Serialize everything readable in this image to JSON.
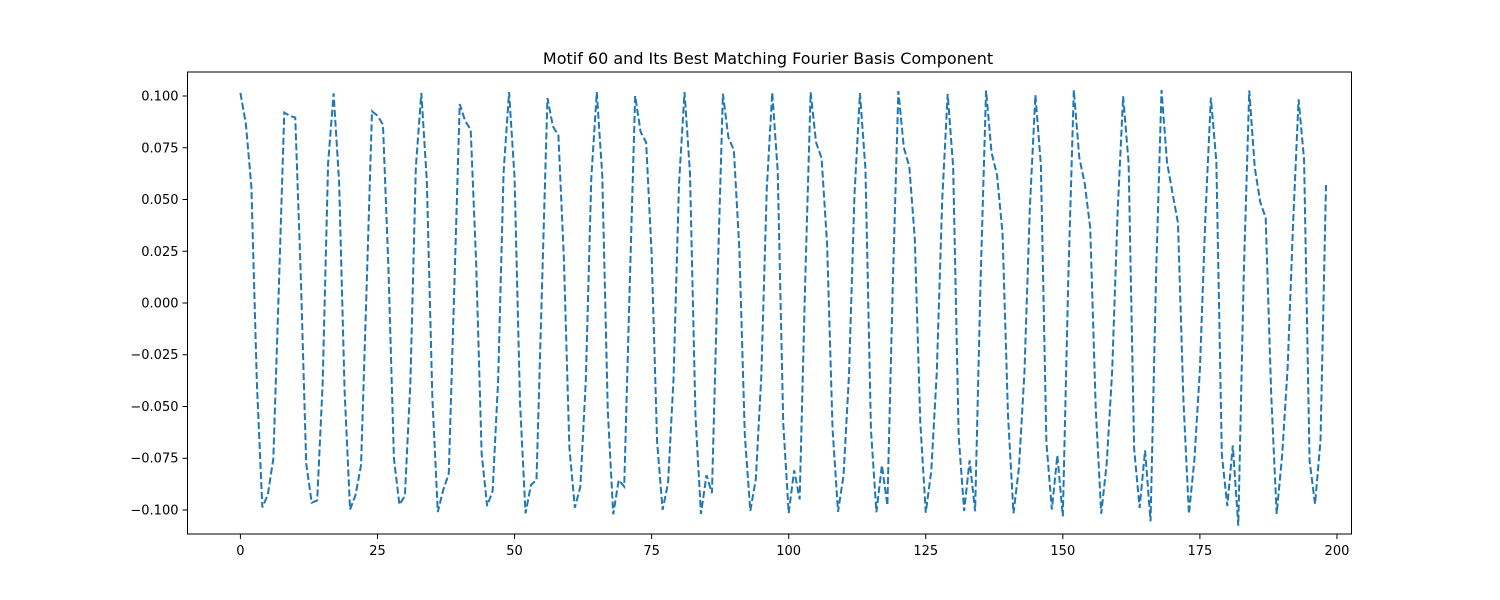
{
  "chart_data": {
    "type": "line",
    "title": "Motif 60 and Its Best Matching Fourier Basis Component",
    "xlabel": "",
    "ylabel": "",
    "xlim": [
      -9.65,
      202.65
    ],
    "ylim": [
      -0.1116,
      0.1116
    ],
    "x_ticks": [
      0,
      25,
      50,
      75,
      100,
      125,
      150,
      175,
      200
    ],
    "y_ticks": [
      -0.1,
      -0.075,
      -0.05,
      -0.025,
      0.0,
      0.025,
      0.05,
      0.075,
      0.1
    ],
    "x_tick_labels": [
      "0",
      "25",
      "50",
      "75",
      "100",
      "125",
      "150",
      "175",
      "200"
    ],
    "y_tick_labels": [
      "−0.100",
      "−0.075",
      "−0.050",
      "−0.025",
      "0.000",
      "0.025",
      "0.050",
      "0.075",
      "0.100"
    ],
    "grid": false,
    "legend": "none",
    "series": [
      {
        "line_style": "dashed",
        "color": "#1f77b4",
        "x_start": 0,
        "x_step": 1,
        "values": [
          0.1015,
          0.0864,
          0.0562,
          -0.0386,
          -0.0988,
          -0.0926,
          -0.0753,
          0.0064,
          0.092,
          0.0905,
          0.0896,
          0.014,
          -0.0775,
          -0.0965,
          -0.0954,
          -0.039,
          0.0678,
          0.1013,
          0.0586,
          -0.0422,
          -0.0998,
          -0.0927,
          -0.0784,
          0.0058,
          0.0926,
          0.0905,
          0.0862,
          0.0169,
          -0.0752,
          -0.0974,
          -0.0932,
          -0.0384,
          0.0657,
          0.1015,
          0.059,
          -0.0451,
          -0.101,
          -0.0902,
          -0.0825,
          0.0065,
          0.0961,
          0.0879,
          0.0838,
          0.0191,
          -0.0728,
          -0.0981,
          -0.0908,
          -0.0379,
          0.0631,
          0.1019,
          0.0606,
          -0.0482,
          -0.1016,
          -0.0878,
          -0.0856,
          0.007,
          0.099,
          0.0853,
          0.081,
          0.0213,
          -0.0699,
          -0.0989,
          -0.0888,
          -0.0372,
          0.0605,
          0.1019,
          0.0617,
          -0.0516,
          -0.1021,
          -0.0855,
          -0.0887,
          0.0079,
          0.1,
          0.0826,
          0.0776,
          0.0237,
          -0.067,
          -0.0999,
          -0.087,
          -0.0364,
          0.0578,
          0.1019,
          0.0627,
          -0.0546,
          -0.1019,
          -0.0832,
          -0.0918,
          0.0085,
          0.1011,
          0.08,
          0.0739,
          0.0262,
          -0.064,
          -0.1004,
          -0.0852,
          -0.0356,
          0.0551,
          0.1017,
          0.0637,
          -0.0578,
          -0.1015,
          -0.0808,
          -0.0949,
          0.0094,
          0.1018,
          0.0775,
          0.07,
          0.0287,
          -0.0608,
          -0.1009,
          -0.0833,
          -0.0349,
          0.0524,
          0.1014,
          0.0647,
          -0.061,
          -0.1011,
          -0.0784,
          -0.0978,
          0.0101,
          0.1024,
          0.0751,
          0.0659,
          0.0312,
          -0.0576,
          -0.1013,
          -0.0814,
          -0.0342,
          0.0497,
          0.101,
          0.0656,
          -0.0642,
          -0.1005,
          -0.076,
          -0.1006,
          0.011,
          0.1027,
          0.0727,
          0.0618,
          0.0337,
          -0.0543,
          -0.1016,
          -0.0795,
          -0.0335,
          0.047,
          0.1005,
          0.0666,
          -0.0673,
          -0.0998,
          -0.0736,
          -0.1031,
          0.0119,
          0.1029,
          0.0703,
          0.0576,
          0.0362,
          -0.0509,
          -0.1018,
          -0.0776,
          -0.0328,
          0.0443,
          0.0999,
          0.0675,
          -0.0703,
          -0.099,
          -0.0712,
          -0.1055,
          0.0128,
          0.1029,
          0.068,
          0.0532,
          0.0387,
          -0.0474,
          -0.1019,
          -0.0756,
          -0.0321,
          0.0415,
          0.0992,
          0.0684,
          -0.0733,
          -0.0981,
          -0.0688,
          -0.1076,
          0.0137,
          0.1027,
          0.0656,
          0.0488,
          0.0412,
          -0.0439,
          -0.1019,
          -0.0737,
          -0.0314,
          0.0387,
          0.0984,
          0.0693,
          -0.0762,
          -0.0971,
          -0.0664,
          0.057
        ]
      }
    ]
  }
}
